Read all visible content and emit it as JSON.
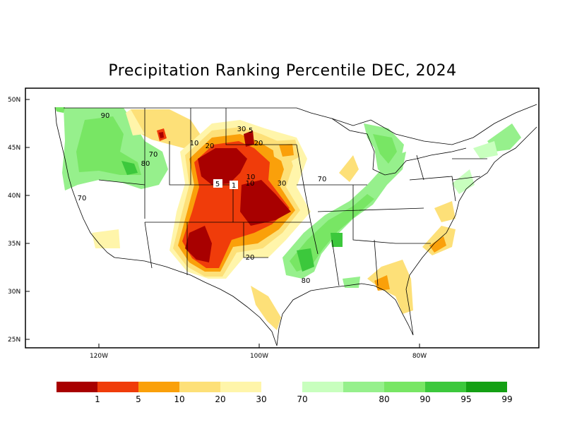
{
  "title": "Precipitation Ranking Percentile DEC, 2024",
  "map": {
    "lat_ticks": [
      "50N",
      "45N",
      "40N",
      "35N",
      "30N",
      "25N"
    ],
    "lon_ticks": [
      "120W",
      "100W",
      "80W"
    ],
    "contour_labels": [
      "90",
      "70",
      "80",
      "70",
      "10",
      "20",
      "30",
      "5",
      "20",
      "10",
      "5",
      "1",
      "10",
      "30",
      "70",
      "20",
      "80"
    ]
  },
  "legend": {
    "bins": [
      {
        "color": "#a80000"
      },
      {
        "color": "#f03c0a"
      },
      {
        "color": "#faa00a"
      },
      {
        "color": "#fde078"
      },
      {
        "color": "#fff5aa"
      },
      {
        "color": "#ffffff"
      },
      {
        "color": "#c8ffbe"
      },
      {
        "color": "#96f08c"
      },
      {
        "color": "#78e664"
      },
      {
        "color": "#3cc83c"
      },
      {
        "color": "#14a014"
      }
    ],
    "labels": [
      "1",
      "5",
      "10",
      "20",
      "30",
      "70",
      "80",
      "90",
      "95",
      "99"
    ]
  },
  "colors": {
    "dry_extreme": "#a80000",
    "dry_very": "#f03c0a",
    "dry_mod": "#faa00a",
    "dry_light": "#fde078",
    "dry_pale": "#fff5aa",
    "wet_pale": "#c8ffbe",
    "wet_light": "#96f08c",
    "wet_mod": "#78e664",
    "wet_very": "#3cc83c",
    "wet_extreme": "#14a014"
  }
}
